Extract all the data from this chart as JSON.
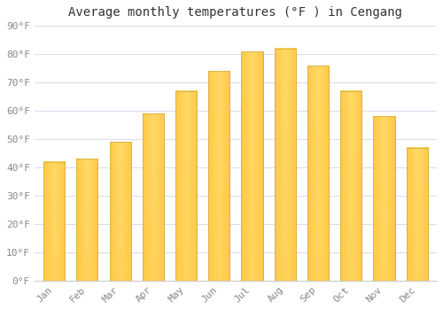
{
  "title": "Average monthly temperatures (°F ) in Cengang",
  "months": [
    "Jan",
    "Feb",
    "Mar",
    "Apr",
    "May",
    "Jun",
    "Jul",
    "Aug",
    "Sep",
    "Oct",
    "Nov",
    "Dec"
  ],
  "values": [
    42,
    43,
    49,
    59,
    67,
    74,
    81,
    82,
    76,
    67,
    58,
    47
  ],
  "bar_color_light": "#FFD966",
  "bar_color_dark": "#FFA500",
  "bar_edge_color": "#CCAA44",
  "ylim": [
    0,
    90
  ],
  "yticks": [
    0,
    10,
    20,
    30,
    40,
    50,
    60,
    70,
    80,
    90
  ],
  "ytick_labels": [
    "0°F",
    "10°F",
    "20°F",
    "30°F",
    "40°F",
    "50°F",
    "60°F",
    "70°F",
    "80°F",
    "90°F"
  ],
  "background_color": "#ffffff",
  "plot_bg_color": "#ffffff",
  "grid_color": "#ddddee",
  "title_fontsize": 10,
  "tick_fontsize": 8,
  "bar_width": 0.65,
  "tick_color": "#888888"
}
